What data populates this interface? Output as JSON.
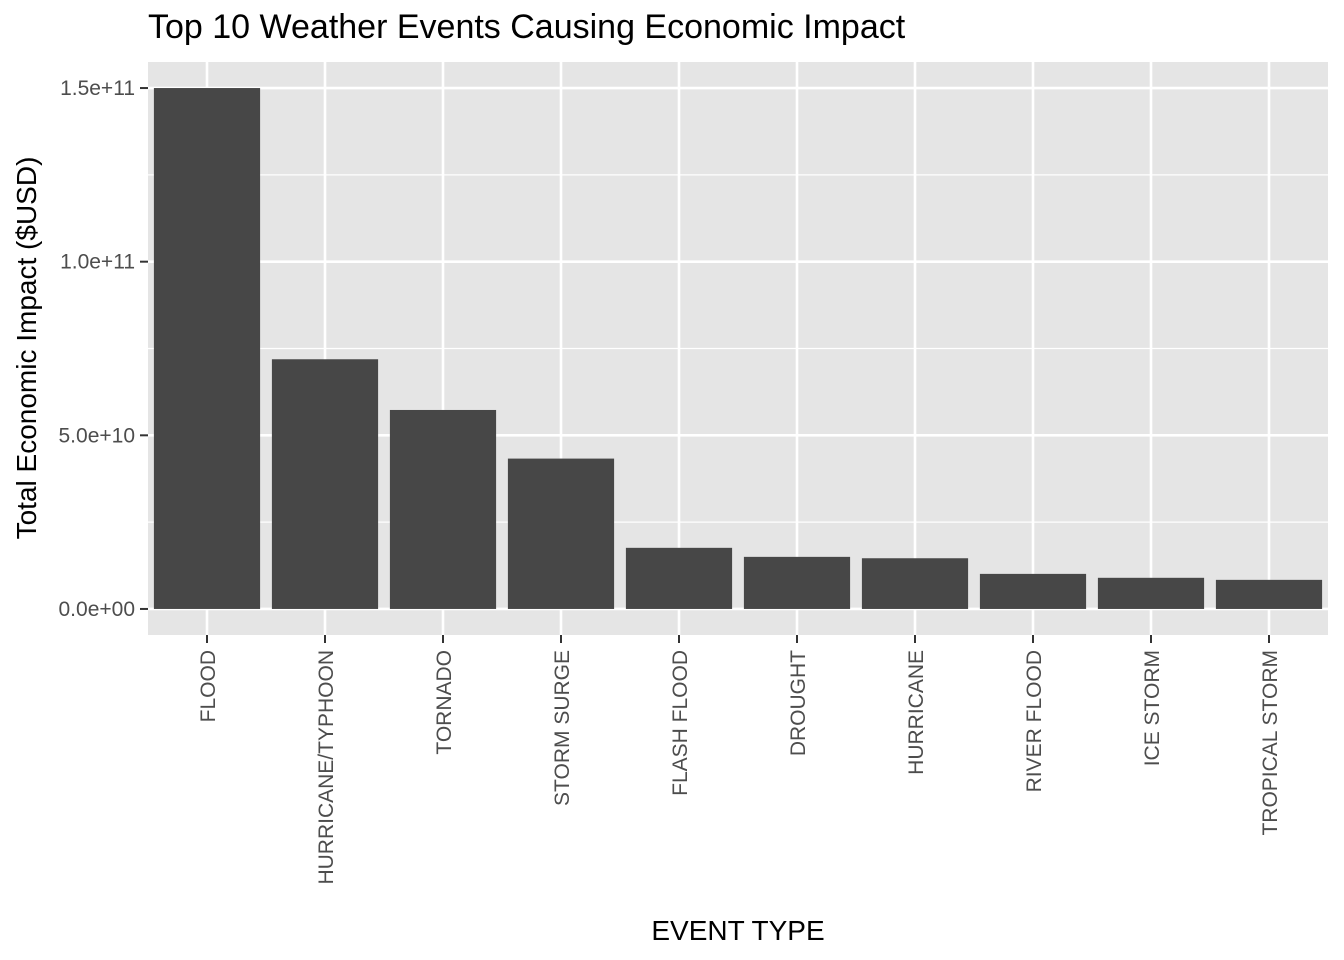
{
  "chart_data": {
    "type": "bar",
    "title": "Top 10 Weather Events Causing Economic Impact",
    "xlabel": "EVENT TYPE",
    "ylabel": "Total Economic Impact ($USD)",
    "categories": [
      "FLOOD",
      "HURRICANE/TYPHOON",
      "TORNADO",
      "STORM SURGE",
      "FLASH FLOOD",
      "DROUGHT",
      "HURRICANE",
      "RIVER FLOOD",
      "ICE STORM",
      "TROPICAL STORM"
    ],
    "values": [
      150000000000,
      71900000000,
      57300000000,
      43300000000,
      17600000000,
      15000000000,
      14600000000,
      10100000000,
      8970000000,
      8380000000
    ],
    "yticks": [
      0,
      50000000000,
      100000000000,
      150000000000
    ],
    "ytick_labels": [
      "0.0e+00",
      "5.0e+10",
      "1.0e+11",
      "1.5e+11"
    ],
    "ylim": [
      -7500000000,
      157500000000
    ],
    "grid": true,
    "legend": "none",
    "colors": {
      "bar": "#474747",
      "panel": "#e5e5e5",
      "grid": "#ffffff",
      "tick": "#333333"
    }
  }
}
